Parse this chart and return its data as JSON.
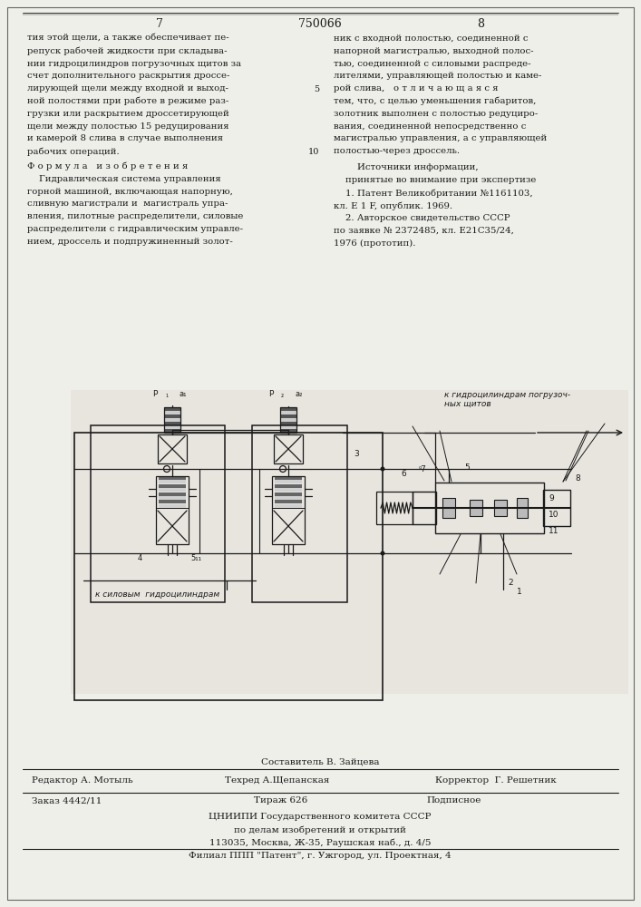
{
  "page_number_left": "7",
  "page_number_center": "750066",
  "page_number_right": "8",
  "col1_text": [
    "тия этой щели, а также обеспечивает пе-",
    "репуск рабочей жидкости при складыва-",
    "нии гидроцилиндров погрузочных щитов за",
    "счет дополнительного раскрытия дроссе-",
    "лирующей щели между входной и выход-",
    "ной полостями при работе в режиме раз-",
    "грузки или раскрытием дроссетирующей",
    "щели между полостью 15 редуцирования",
    "и камерой 8 слива в случае выполнения",
    "рабочих операций."
  ],
  "formula_title": "Ф о р м у л а   и з о б р е т е н и я",
  "col1_formula_text": [
    "    Гидравлическая система управления",
    "горной машиной, включающая напорную,",
    "сливную магистрали и  магистраль упра-",
    "вления, пилотные распределители, силовые",
    "распределители с гидравлическим управле-",
    "нием, дроссель и подпружиненный золот-"
  ],
  "col2_text": [
    "ник с входной полостью, соединенной с",
    "напорной магистралью, выходной полос-",
    "тью, соединенной с силовыми распреде-",
    "лителями, управляющей полостью и каме-",
    "рой слива,   о т л и ч а ю щ а я с я",
    "тем, что, с целью уменьшения габаритов,",
    "золотник выполнен с полостью редуциро-",
    "вания, соединенной непосредственно с",
    "магистралью управления, а с управляющей",
    "полостью-через дроссель."
  ],
  "sources_title": "        Источники информации,",
  "sources_subtitle": "    принятые во внимание при экспертизе",
  "source1": "    1. Патент Великобритании №1161103,",
  "source1b": "кл. Е 1 F, опублик. 1969.",
  "source2": "    2. Авторское свидетельство СССР",
  "source2b": "по заявке № 2372485, кл. Е21С35/24,",
  "source2c": "1976 (прототип).",
  "diagram_label_top": "к гидроцилиндрам погрузоч-",
  "diagram_label_top2": "ных щитов",
  "diagram_label_bottom": "к силовым  гидроцилиндрам",
  "footer_composer": "Составитель В. Зайцева",
  "footer_editor": "Редактор А. Мотыль",
  "footer_tech": "Техред А.Щепанская",
  "footer_corrector": "Корректор  Г. Решетник",
  "footer_order": "Заказ 4442/11",
  "footer_circulation": "Тираж 626",
  "footer_subscription": "Подписное",
  "footer_line2": "ЦНИИПИ Государственного комитета СССР",
  "footer_line3": "по делам изобретений и открытий",
  "footer_line4": "113035, Москва, Ж-35, Раушская наб., д. 4/5",
  "footer_line5": "Филиал ППП \"Патент\", г. Ужгород, ул. Проектная, 4",
  "bg_color": "#efefea",
  "text_color": "#1a1a1a",
  "diagram_bg": "#e8e5df"
}
